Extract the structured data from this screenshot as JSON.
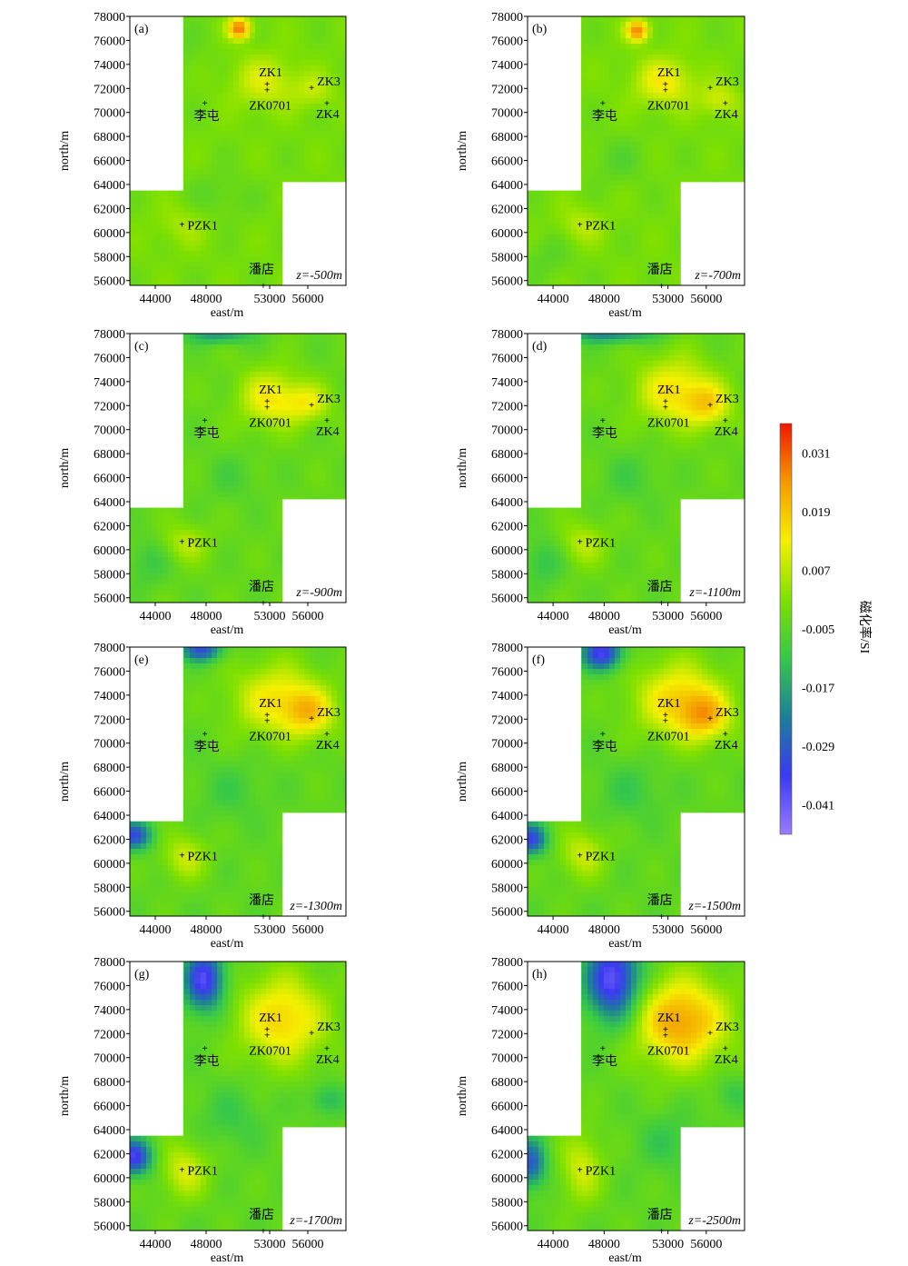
{
  "figure": {
    "colorbar": {
      "label": "磁化率/SI",
      "ticks": [
        "0.031",
        "0.019",
        "0.007",
        "-0.005",
        "-0.017",
        "-0.029",
        "-0.041"
      ],
      "tick_values": [
        0.031,
        0.019,
        0.007,
        -0.005,
        -0.017,
        -0.029,
        -0.041
      ],
      "range": [
        -0.047,
        0.037
      ],
      "stops": [
        "#9a7cff",
        "#3a3af0",
        "#1c7f98",
        "#36c84a",
        "#7fe000",
        "#f5f000",
        "#f59a00",
        "#f01800"
      ]
    }
  },
  "chart_data": [
    {
      "type": "heatmap",
      "panel": "(a)",
      "depth_label": "z=-500m",
      "xlabel": "east/m",
      "ylabel": "north/m",
      "x_ticks": [
        "44000",
        "48000",
        "53000",
        "56000"
      ],
      "y_ticks": [
        "56000",
        "58000",
        "60000",
        "62000",
        "64000",
        "66000",
        "68000",
        "70000",
        "72000",
        "74000",
        "76000",
        "78000"
      ],
      "xlim": [
        42000,
        59000
      ],
      "ylim": [
        55600,
        78000
      ],
      "wells": [
        {
          "name": "ZK1",
          "x": 52800,
          "y": 72400
        },
        {
          "name": "ZK0701",
          "x": 52800,
          "y": 71900
        },
        {
          "name": "ZK3",
          "x": 56300,
          "y": 72100
        },
        {
          "name": "ZK4",
          "x": 57500,
          "y": 70800
        },
        {
          "name": "李屯",
          "x": 47900,
          "y": 70800
        },
        {
          "name": "PZK1",
          "x": 46100,
          "y": 60700
        },
        {
          "name": "潘店",
          "x": 52500,
          "y": 55600
        }
      ]
    },
    {
      "type": "heatmap",
      "panel": "(b)",
      "depth_label": "z=-700m",
      "xlabel": "east/m",
      "ylabel": "north/m",
      "x_ticks": [
        "44000",
        "48000",
        "53000",
        "56000"
      ],
      "y_ticks": [
        "56000",
        "58000",
        "60000",
        "62000",
        "64000",
        "66000",
        "68000",
        "70000",
        "72000",
        "74000",
        "76000",
        "78000"
      ],
      "xlim": [
        42000,
        59000
      ],
      "ylim": [
        55600,
        78000
      ],
      "wells": [
        {
          "name": "ZK1",
          "x": 52800,
          "y": 72400
        },
        {
          "name": "ZK0701",
          "x": 52800,
          "y": 71900
        },
        {
          "name": "ZK3",
          "x": 56300,
          "y": 72100
        },
        {
          "name": "ZK4",
          "x": 57500,
          "y": 70800
        },
        {
          "name": "李屯",
          "x": 47900,
          "y": 70800
        },
        {
          "name": "PZK1",
          "x": 46100,
          "y": 60700
        },
        {
          "name": "潘店",
          "x": 52500,
          "y": 55600
        }
      ]
    },
    {
      "type": "heatmap",
      "panel": "(c)",
      "depth_label": "z=-900m",
      "xlabel": "east/m",
      "ylabel": "north/m",
      "x_ticks": [
        "44000",
        "48000",
        "53000",
        "56000"
      ],
      "y_ticks": [
        "56000",
        "58000",
        "60000",
        "62000",
        "64000",
        "66000",
        "68000",
        "70000",
        "72000",
        "74000",
        "76000",
        "78000"
      ],
      "xlim": [
        42000,
        59000
      ],
      "ylim": [
        55600,
        78000
      ],
      "wells": [
        {
          "name": "ZK1",
          "x": 52800,
          "y": 72400
        },
        {
          "name": "ZK0701",
          "x": 52800,
          "y": 71900
        },
        {
          "name": "ZK3",
          "x": 56300,
          "y": 72100
        },
        {
          "name": "ZK4",
          "x": 57500,
          "y": 70800
        },
        {
          "name": "李屯",
          "x": 47900,
          "y": 70800
        },
        {
          "name": "PZK1",
          "x": 46100,
          "y": 60700
        },
        {
          "name": "潘店",
          "x": 52500,
          "y": 55600
        }
      ]
    },
    {
      "type": "heatmap",
      "panel": "(d)",
      "depth_label": "z=-1100m",
      "xlabel": "east/m",
      "ylabel": "north/m",
      "x_ticks": [
        "44000",
        "48000",
        "53000",
        "56000"
      ],
      "y_ticks": [
        "56000",
        "58000",
        "60000",
        "62000",
        "64000",
        "66000",
        "68000",
        "70000",
        "72000",
        "74000",
        "76000",
        "78000"
      ],
      "xlim": [
        42000,
        59000
      ],
      "ylim": [
        55600,
        78000
      ],
      "wells": [
        {
          "name": "ZK1",
          "x": 52800,
          "y": 72400
        },
        {
          "name": "ZK0701",
          "x": 52800,
          "y": 71900
        },
        {
          "name": "ZK3",
          "x": 56300,
          "y": 72100
        },
        {
          "name": "ZK4",
          "x": 57500,
          "y": 70800
        },
        {
          "name": "李屯",
          "x": 47900,
          "y": 70800
        },
        {
          "name": "PZK1",
          "x": 46100,
          "y": 60700
        },
        {
          "name": "潘店",
          "x": 52500,
          "y": 55600
        }
      ]
    },
    {
      "type": "heatmap",
      "panel": "(e)",
      "depth_label": "z=-1300m",
      "xlabel": "east/m",
      "ylabel": "north/m",
      "x_ticks": [
        "44000",
        "48000",
        "53000",
        "56000"
      ],
      "y_ticks": [
        "56000",
        "58000",
        "60000",
        "62000",
        "64000",
        "66000",
        "68000",
        "70000",
        "72000",
        "74000",
        "76000",
        "78000"
      ],
      "xlim": [
        42000,
        59000
      ],
      "ylim": [
        55600,
        78000
      ],
      "wells": [
        {
          "name": "ZK1",
          "x": 52800,
          "y": 72400
        },
        {
          "name": "ZK0701",
          "x": 52800,
          "y": 71900
        },
        {
          "name": "ZK3",
          "x": 56300,
          "y": 72100
        },
        {
          "name": "ZK4",
          "x": 57500,
          "y": 70800
        },
        {
          "name": "李屯",
          "x": 47900,
          "y": 70800
        },
        {
          "name": "PZK1",
          "x": 46100,
          "y": 60700
        },
        {
          "name": "潘店",
          "x": 52500,
          "y": 55600
        }
      ]
    },
    {
      "type": "heatmap",
      "panel": "(f)",
      "depth_label": "z=-1500m",
      "xlabel": "east/m",
      "ylabel": "north/m",
      "x_ticks": [
        "44000",
        "48000",
        "53000",
        "56000"
      ],
      "y_ticks": [
        "56000",
        "58000",
        "60000",
        "62000",
        "64000",
        "66000",
        "68000",
        "70000",
        "72000",
        "74000",
        "76000",
        "78000"
      ],
      "xlim": [
        42000,
        59000
      ],
      "ylim": [
        55600,
        78000
      ],
      "wells": [
        {
          "name": "ZK1",
          "x": 52800,
          "y": 72400
        },
        {
          "name": "ZK0701",
          "x": 52800,
          "y": 71900
        },
        {
          "name": "ZK3",
          "x": 56300,
          "y": 72100
        },
        {
          "name": "ZK4",
          "x": 57500,
          "y": 70800
        },
        {
          "name": "李屯",
          "x": 47900,
          "y": 70800
        },
        {
          "name": "PZK1",
          "x": 46100,
          "y": 60700
        },
        {
          "name": "潘店",
          "x": 52500,
          "y": 55600
        }
      ]
    },
    {
      "type": "heatmap",
      "panel": "(g)",
      "depth_label": "z=-1700m",
      "xlabel": "east/m",
      "ylabel": "north/m",
      "x_ticks": [
        "44000",
        "48000",
        "53000",
        "56000"
      ],
      "y_ticks": [
        "56000",
        "58000",
        "60000",
        "62000",
        "64000",
        "66000",
        "68000",
        "70000",
        "72000",
        "74000",
        "76000",
        "78000"
      ],
      "xlim": [
        42000,
        59000
      ],
      "ylim": [
        55600,
        78000
      ],
      "wells": [
        {
          "name": "ZK1",
          "x": 52800,
          "y": 72400
        },
        {
          "name": "ZK0701",
          "x": 52800,
          "y": 71900
        },
        {
          "name": "ZK3",
          "x": 56300,
          "y": 72100
        },
        {
          "name": "ZK4",
          "x": 57500,
          "y": 70800
        },
        {
          "name": "李屯",
          "x": 47900,
          "y": 70800
        },
        {
          "name": "PZK1",
          "x": 46100,
          "y": 60700
        },
        {
          "name": "潘店",
          "x": 52500,
          "y": 55600
        }
      ]
    },
    {
      "type": "heatmap",
      "panel": "(h)",
      "depth_label": "z=-2500m",
      "xlabel": "east/m",
      "ylabel": "north/m",
      "x_ticks": [
        "44000",
        "48000",
        "53000",
        "56000"
      ],
      "y_ticks": [
        "56000",
        "58000",
        "60000",
        "62000",
        "64000",
        "66000",
        "68000",
        "70000",
        "72000",
        "74000",
        "76000",
        "78000"
      ],
      "xlim": [
        42000,
        59000
      ],
      "ylim": [
        55600,
        78000
      ],
      "wells": [
        {
          "name": "ZK1",
          "x": 52800,
          "y": 72400
        },
        {
          "name": "ZK0701",
          "x": 52800,
          "y": 71900
        },
        {
          "name": "ZK3",
          "x": 56300,
          "y": 72100
        },
        {
          "name": "ZK4",
          "x": 57500,
          "y": 70800
        },
        {
          "name": "李屯",
          "x": 47900,
          "y": 70800
        },
        {
          "name": "PZK1",
          "x": 46100,
          "y": 60700
        },
        {
          "name": "潘店",
          "x": 52500,
          "y": 55600
        }
      ]
    }
  ]
}
